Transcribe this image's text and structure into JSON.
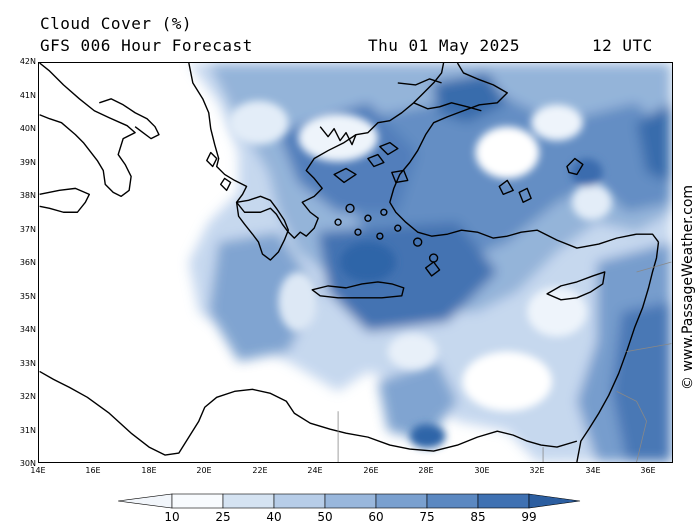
{
  "header": {
    "title": "Cloud Cover (%)",
    "subtitle": "GFS 006 Hour Forecast",
    "date": "Thu 01 May 2025",
    "time": "12 UTC"
  },
  "map": {
    "region": "Eastern Mediterranean",
    "lat_labels": [
      "42N",
      "41N",
      "40N",
      "39N",
      "38N",
      "37N",
      "36N",
      "35N",
      "34N",
      "33N",
      "32N",
      "31N",
      "30N"
    ],
    "lon_labels": [
      "14E",
      "16E",
      "18E",
      "20E",
      "22E",
      "24E",
      "26E",
      "28E",
      "30E",
      "32E",
      "34E",
      "36E"
    ],
    "colors": {
      "land_outline": "#000000",
      "cloud_light": "#dce8f6",
      "cloud_mid": "#8fb0d8",
      "cloud_dark": "#2f65a8"
    }
  },
  "colorbar": {
    "ticks": [
      "10",
      "25",
      "40",
      "50",
      "60",
      "75",
      "85",
      "99"
    ],
    "colors": [
      "#f2f6fb",
      "#d5e3f2",
      "#b7cde8",
      "#99b7dc",
      "#7aa0cf",
      "#5b88c1",
      "#3f71b2",
      "#2c5ea0"
    ]
  },
  "credit": "© www.PassageWeather.com"
}
